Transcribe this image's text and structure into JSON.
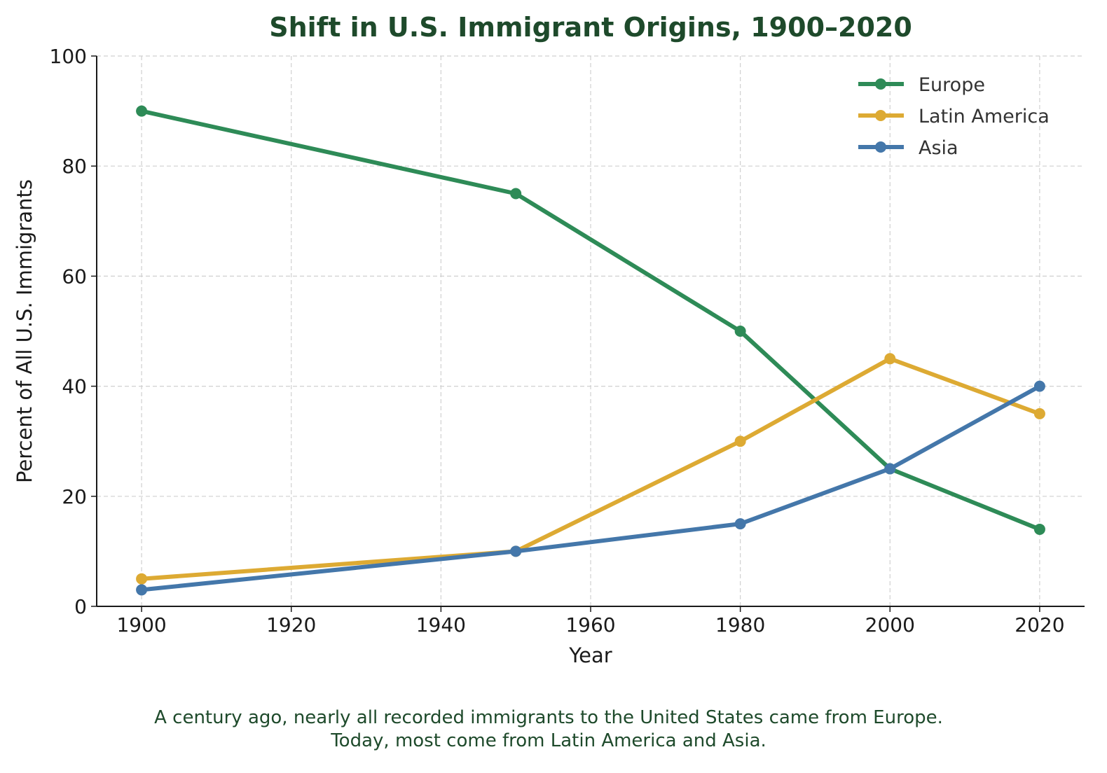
{
  "chart_data": {
    "type": "line",
    "title": "Shift in U.S. Immigrant Origins, 1900–2020",
    "xlabel": "Year",
    "ylabel": "Percent of All U.S. Immigrants",
    "xlim": [
      1894,
      2026
    ],
    "ylim": [
      0,
      100
    ],
    "xticks": [
      1900,
      1920,
      1940,
      1960,
      1980,
      2000,
      2020
    ],
    "yticks": [
      0,
      20,
      40,
      60,
      80,
      100
    ],
    "grid": true,
    "legend_position": "top-right",
    "x": [
      1900,
      1950,
      1980,
      2000,
      2020
    ],
    "series": [
      {
        "name": "Europe",
        "color": "#2e8b57",
        "values": [
          90,
          75,
          50,
          25,
          14
        ]
      },
      {
        "name": "Latin America",
        "color": "#ddaa33",
        "values": [
          5,
          10,
          30,
          45,
          35
        ]
      },
      {
        "name": "Asia",
        "color": "#4477aa",
        "values": [
          3,
          10,
          15,
          25,
          40
        ]
      }
    ],
    "caption_lines": [
      "A century ago, nearly all recorded immigrants to the United States came from Europe.",
      "Today, most come from Latin America and Asia."
    ],
    "title_color": "#1e4a2b",
    "caption_color": "#1e4a2b"
  }
}
